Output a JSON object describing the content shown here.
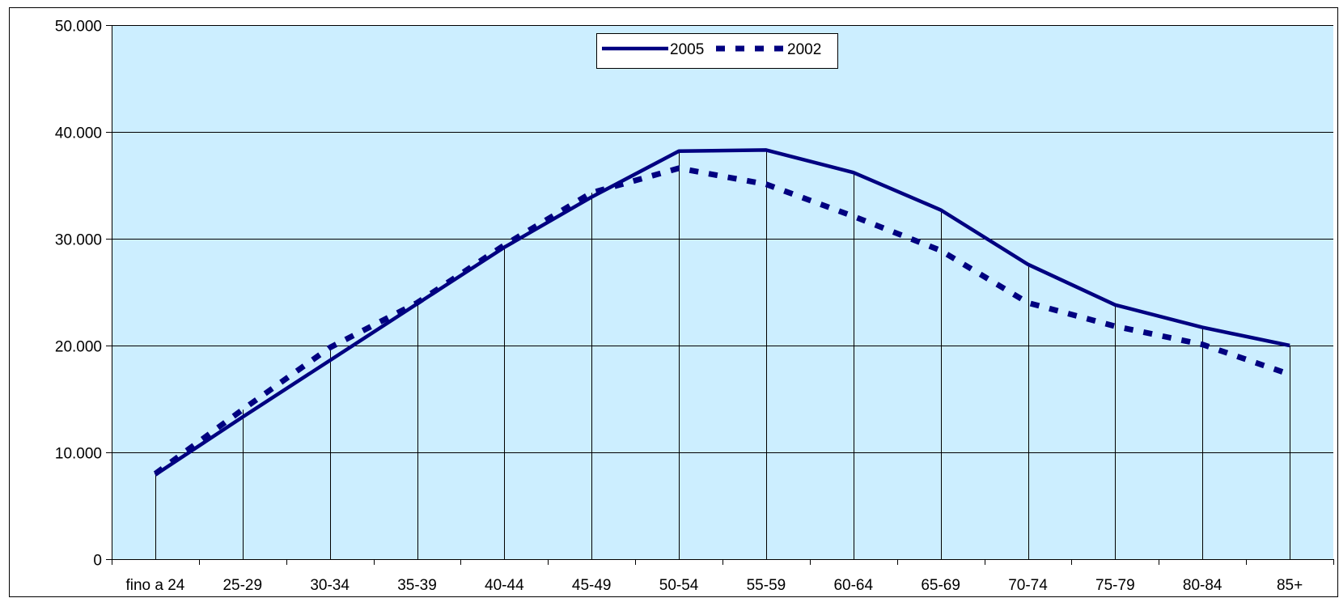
{
  "chart_data": {
    "type": "line",
    "title": "",
    "xlabel": "",
    "ylabel": "",
    "categories": [
      "fino a 24",
      "25-29",
      "30-34",
      "35-39",
      "40-44",
      "45-49",
      "50-54",
      "55-59",
      "60-64",
      "65-69",
      "70-74",
      "75-79",
      "80-84",
      "85+"
    ],
    "series": [
      {
        "name": "2005",
        "style": "solid",
        "values": [
          7900,
          13300,
          18600,
          23900,
          29200,
          33900,
          38200,
          38300,
          36200,
          32700,
          27600,
          23800,
          21700,
          20000
        ]
      },
      {
        "name": "2002",
        "style": "dashed",
        "values": [
          8000,
          14000,
          19800,
          24000,
          29400,
          34300,
          36600,
          35100,
          32100,
          28900,
          24000,
          21800,
          20100,
          17300
        ]
      }
    ],
    "ylim": [
      0,
      50000
    ],
    "yticks": [
      0,
      10000,
      20000,
      30000,
      40000,
      50000
    ],
    "ytick_labels": [
      "0",
      "10.000",
      "20.000",
      "30.000",
      "40.000",
      "50.000"
    ],
    "grid": "horizontal",
    "drop_lines": true,
    "legend_position": "top-center",
    "colors": {
      "line": "#000080",
      "plot_background": "#cceeff",
      "grid": "#000000",
      "axis": "#000000"
    }
  }
}
